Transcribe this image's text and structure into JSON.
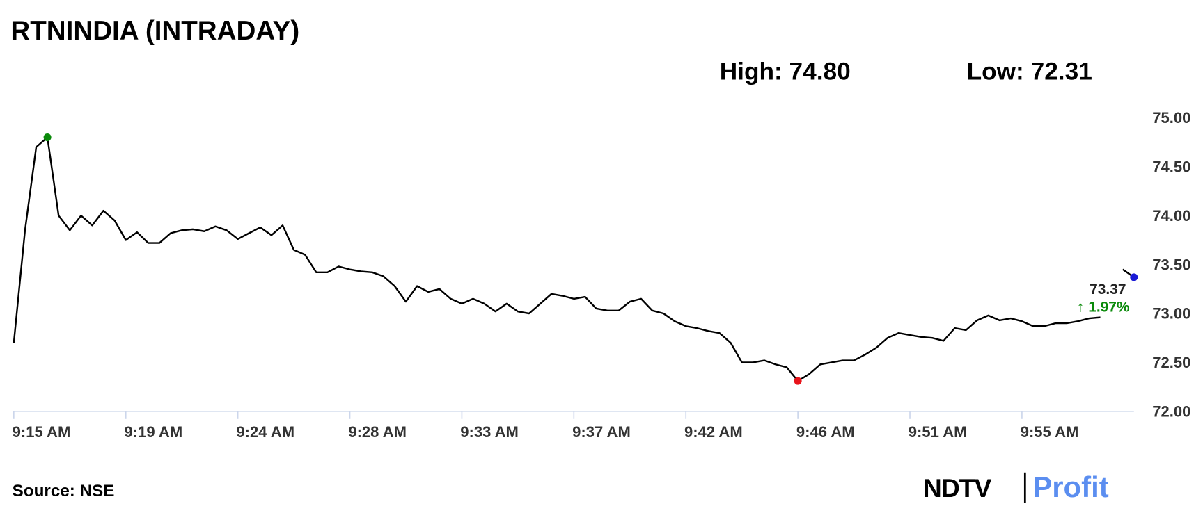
{
  "chart_data": {
    "type": "line",
    "title": "RTNINDIA (INTRADAY)",
    "high_text": "High: 74.80",
    "low_text": "Low: 72.31",
    "last_label": "73.37",
    "change_label": "↑ 1.97%",
    "source": "Source: NSE",
    "brand": [
      "NDTV",
      "Profit"
    ],
    "color": "#000000",
    "high_color": "#0a8a0a",
    "low_color": "#e8141b",
    "last_color": "#1a1ad6",
    "categories": [
      "9:15 AM",
      null,
      null,
      null,
      null,
      null,
      null,
      null,
      null,
      null,
      "9:19 AM",
      null,
      null,
      null,
      null,
      null,
      null,
      null,
      null,
      null,
      "9:24 AM",
      null,
      null,
      null,
      null,
      null,
      null,
      null,
      null,
      null,
      "9:28 AM",
      null,
      null,
      null,
      null,
      null,
      null,
      null,
      null,
      null,
      "9:33 AM",
      null,
      null,
      null,
      null,
      null,
      null,
      null,
      null,
      null,
      "9:37 AM",
      null,
      null,
      null,
      null,
      null,
      null,
      null,
      null,
      null,
      "9:42 AM",
      null,
      null,
      null,
      null,
      null,
      null,
      null,
      null,
      null,
      "9:46 AM",
      null,
      null,
      null,
      null,
      null,
      null,
      null,
      null,
      null,
      "9:51 AM",
      null,
      null,
      null,
      null,
      null,
      null,
      null,
      null,
      null,
      "9:55 AM",
      null,
      null,
      null,
      null,
      null,
      null,
      null,
      null,
      null,
      null
    ],
    "values": [
      72.7,
      73.85,
      74.7,
      74.8,
      74.0,
      73.85,
      74.0,
      73.9,
      74.05,
      73.95,
      73.75,
      73.83,
      73.72,
      73.72,
      73.82,
      73.85,
      73.86,
      73.84,
      73.89,
      73.85,
      73.76,
      73.82,
      73.88,
      73.8,
      73.9,
      73.65,
      73.6,
      73.42,
      73.42,
      73.48,
      73.45,
      73.43,
      73.42,
      73.38,
      73.28,
      73.12,
      73.28,
      73.22,
      73.25,
      73.15,
      73.1,
      73.15,
      73.1,
      73.02,
      73.1,
      73.02,
      73.0,
      73.1,
      73.2,
      73.18,
      73.15,
      73.17,
      73.05,
      73.03,
      73.03,
      73.12,
      73.15,
      73.03,
      73.0,
      72.92,
      72.87,
      72.85,
      72.82,
      72.8,
      72.7,
      72.5,
      72.5,
      72.52,
      72.48,
      72.45,
      72.31,
      72.38,
      72.48,
      72.5,
      72.52,
      72.52,
      72.58,
      72.65,
      72.75,
      72.8,
      72.78,
      72.76,
      72.75,
      72.72,
      72.85,
      72.83,
      72.93,
      72.98,
      72.93,
      72.95,
      72.92,
      72.87,
      72.87,
      72.9,
      72.9,
      72.92,
      72.95,
      72.96,
      null,
      73.45,
      73.37
    ],
    "high_index": 3,
    "low_index": 70,
    "ylim": [
      72,
      75
    ],
    "yticks": [
      {
        "value": 72,
        "label": "72.00"
      },
      {
        "value": 72.5,
        "label": "72.50"
      },
      {
        "value": 73,
        "label": "73.00"
      },
      {
        "value": 73.5,
        "label": "73.50"
      },
      {
        "value": 74,
        "label": "74.00"
      },
      {
        "value": 74.5,
        "label": "74.50"
      },
      {
        "value": 75,
        "label": "75.00"
      }
    ]
  }
}
